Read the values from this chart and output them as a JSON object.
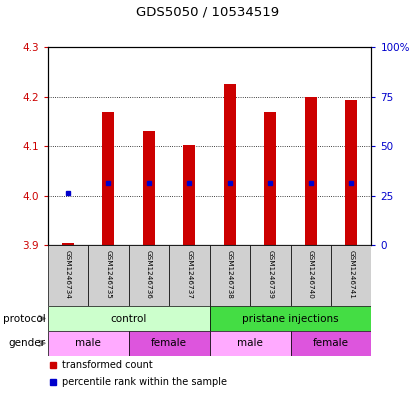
{
  "title": "GDS5050 / 10534519",
  "samples": [
    "GSM1246734",
    "GSM1246735",
    "GSM1246736",
    "GSM1246737",
    "GSM1246738",
    "GSM1246739",
    "GSM1246740",
    "GSM1246741"
  ],
  "bar_bottoms": [
    3.9,
    3.9,
    3.9,
    3.9,
    3.9,
    3.9,
    3.9,
    3.9
  ],
  "bar_tops": [
    3.905,
    4.17,
    4.13,
    4.103,
    4.225,
    4.17,
    4.2,
    4.193
  ],
  "percentile_values": [
    4.005,
    4.025,
    4.025,
    4.025,
    4.025,
    4.025,
    4.025,
    4.025
  ],
  "ylim": [
    3.9,
    4.3
  ],
  "yticks_left": [
    3.9,
    4.0,
    4.1,
    4.2,
    4.3
  ],
  "yticks_right_pct": [
    0,
    25,
    50,
    75,
    100
  ],
  "ytick_labels_right": [
    "0",
    "25",
    "50",
    "75",
    "100%"
  ],
  "bar_color": "#cc0000",
  "percentile_color": "#0000cc",
  "protocol_groups": [
    {
      "label": "control",
      "start": 0,
      "end": 4,
      "color": "#ccffcc"
    },
    {
      "label": "pristane injections",
      "start": 4,
      "end": 8,
      "color": "#44dd44"
    }
  ],
  "gender_groups": [
    {
      "label": "male",
      "start": 0,
      "end": 2,
      "color": "#ffaaff"
    },
    {
      "label": "female",
      "start": 2,
      "end": 4,
      "color": "#dd55dd"
    },
    {
      "label": "male",
      "start": 4,
      "end": 6,
      "color": "#ffaaff"
    },
    {
      "label": "female",
      "start": 6,
      "end": 8,
      "color": "#dd55dd"
    }
  ],
  "legend_items": [
    {
      "label": "transformed count",
      "color": "#cc0000"
    },
    {
      "label": "percentile rank within the sample",
      "color": "#0000cc"
    }
  ],
  "sample_box_color": "#d0d0d0",
  "left_label_color": "#cc0000",
  "right_label_color": "#0000cc",
  "arrow_color": "#888888",
  "bar_width": 0.3
}
